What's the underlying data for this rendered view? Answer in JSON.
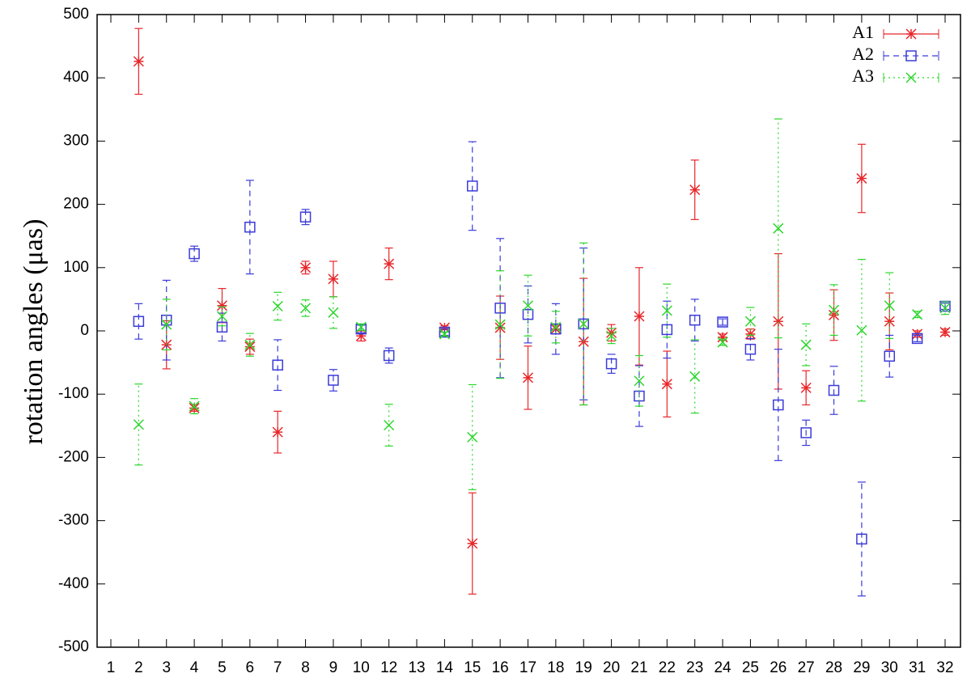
{
  "chart_data": {
    "type": "errorbar",
    "y_label": "rotation angles (μas)",
    "categories": [
      "1",
      "2",
      "3",
      "4",
      "5",
      "6",
      "7",
      "8",
      "9",
      "10",
      "12",
      "13",
      "14",
      "15",
      "16",
      "17",
      "18",
      "19",
      "20",
      "21",
      "22",
      "23",
      "24",
      "25",
      "26",
      "27",
      "28",
      "29",
      "30",
      "31",
      "32"
    ],
    "ylim": [
      -500,
      500
    ],
    "yticks": [
      -500,
      -400,
      -300,
      -200,
      -100,
      0,
      100,
      200,
      300,
      400,
      500
    ],
    "legend": "top-right",
    "series": [
      {
        "name": "A1",
        "color": "#e8262a",
        "marker": "star",
        "line_style": "solid",
        "values": [
          null,
          426,
          -22,
          -122,
          40,
          -25,
          -160,
          100,
          82,
          -8,
          106,
          null,
          5,
          -336,
          5,
          -74,
          3,
          -17,
          -3,
          23,
          -84,
          223,
          -10,
          -5,
          15,
          -90,
          25,
          241,
          15,
          -5,
          -2
        ],
        "errors": [
          null,
          52,
          38,
          5,
          27,
          12,
          33,
          10,
          28,
          8,
          25,
          null,
          3,
          80,
          50,
          50,
          8,
          100,
          13,
          77,
          52,
          47,
          5,
          8,
          107,
          27,
          40,
          54,
          45,
          5,
          5
        ]
      },
      {
        "name": "A2",
        "color": "#3b3bd9",
        "marker": "square",
        "line_style": "dashed",
        "values": [
          null,
          15,
          17,
          122,
          6,
          164,
          -54,
          180,
          -78,
          3,
          -39,
          null,
          -2,
          229,
          36,
          26,
          3,
          11,
          -52,
          -103,
          2,
          17,
          14,
          -29,
          -117,
          -161,
          -94,
          -329,
          -40,
          -12,
          39
        ],
        "errors": [
          null,
          28,
          63,
          12,
          22,
          74,
          40,
          12,
          17,
          6,
          12,
          null,
          5,
          70,
          110,
          45,
          40,
          120,
          15,
          48,
          45,
          33,
          5,
          17,
          88,
          20,
          38,
          90,
          33,
          5,
          5
        ]
      },
      {
        "name": "A3",
        "color": "#2bd62b",
        "marker": "cross",
        "line_style": "dotted",
        "values": [
          null,
          -148,
          10,
          -119,
          23,
          -22,
          39,
          36,
          29,
          6,
          -149,
          null,
          -5,
          -168,
          10,
          40,
          6,
          11,
          -8,
          -79,
          32,
          -72,
          -18,
          15,
          162,
          -22,
          33,
          1,
          40,
          26,
          36
        ],
        "errors": [
          null,
          64,
          40,
          12,
          15,
          18,
          22,
          13,
          25,
          5,
          33,
          null,
          3,
          83,
          85,
          48,
          25,
          128,
          12,
          40,
          42,
          58,
          5,
          22,
          173,
          33,
          40,
          112,
          52,
          5,
          10
        ]
      }
    ]
  }
}
